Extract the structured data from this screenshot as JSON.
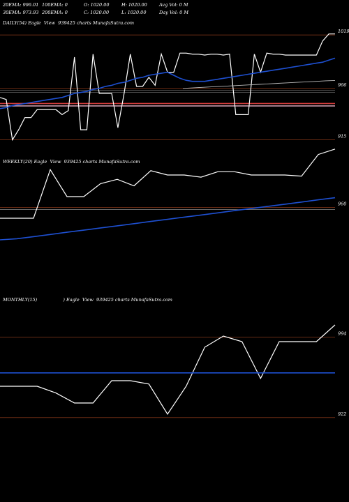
{
  "header": {
    "row1": [
      "20EMA: 996.01",
      "100EMA: 0",
      "O: 1020.00",
      "H: 1020.00",
      "Avg Vol: 0  M"
    ],
    "row2": [
      "30EMA: 973.93",
      "200EMA: 0",
      "C: 1020.00",
      "L: 1020.00",
      "Day Vol: 0  M"
    ]
  },
  "colors": {
    "background": "#000000",
    "price": "#ffffff",
    "ema": "#1e50d2",
    "level_line": "#8b3a1a",
    "red_band": "#d23c3c",
    "pink_band": "#e8b4c8"
  },
  "chart_data": [
    {
      "type": "line",
      "title": "DAILY(54) Eagle  View  939425 charts MunafaSutra.com",
      "ylim": [
        905,
        1026
      ],
      "yticks": [
        1019,
        966,
        915
      ],
      "series": [
        {
          "role": "price",
          "values": [
            957,
            955,
            915,
            925,
            937,
            937,
            945,
            945,
            945,
            945,
            940,
            944,
            997,
            925,
            925,
            1000,
            961,
            961,
            961,
            927,
            961,
            1000,
            968,
            968,
            977,
            969,
            1000,
            982,
            982,
            1001,
            1001,
            1000,
            1000,
            999,
            1000,
            1000,
            999,
            1000,
            940,
            940,
            940,
            1000,
            982,
            1001,
            1000,
            1000,
            999,
            999,
            999,
            999,
            999,
            999,
            1013,
            1020,
            1020
          ]
        },
        {
          "role": "ema",
          "values": [
            946,
            947,
            949,
            950,
            951,
            952,
            953,
            954,
            955,
            956,
            957,
            959,
            961,
            962,
            963,
            965,
            966,
            968,
            969,
            971,
            972,
            974,
            976,
            977,
            979,
            980,
            981,
            982,
            979,
            976,
            974,
            973,
            973,
            973,
            974,
            975,
            976,
            977,
            978,
            979,
            980,
            981,
            982,
            983,
            984,
            985,
            986,
            987,
            988,
            989,
            990,
            991,
            992,
            994,
            996
          ]
        },
        {
          "role": "ema_slow",
          "values": [
            966,
            966.5,
            967,
            967.5,
            968,
            968.5,
            969,
            969.5,
            970,
            970.5,
            971,
            971.5,
            972,
            972.5,
            973,
            973.5,
            973.9
          ]
        }
      ],
      "levels": [
        1019,
        966,
        915
      ],
      "bands": [
        951,
        950
      ]
    },
    {
      "type": "line",
      "title": "WEEKLY(20) Eagle  View  939425 charts MunafaSutra.com",
      "ylim": [
        910,
        1010
      ],
      "yticks": [
        960
      ],
      "series": [
        {
          "role": "price",
          "values": [
            950,
            950,
            950,
            995,
            970,
            970,
            982,
            986,
            980,
            994,
            990,
            990,
            988,
            993,
            993,
            990,
            990,
            990,
            989,
            1009,
            1014
          ]
        },
        {
          "role": "ema",
          "values": [
            930,
            931,
            933,
            935,
            937,
            939,
            941,
            943,
            945,
            947,
            949,
            951,
            953,
            955,
            957,
            959,
            961,
            963,
            965,
            967,
            969
          ]
        }
      ],
      "levels": [
        960
      ]
    },
    {
      "type": "line",
      "title": "MONTHLY(15)                  ) Eagle  View  939425 charts MunafaSutra.com",
      "ylim": [
        910,
        1010
      ],
      "yticks": [
        994,
        922
      ],
      "series": [
        {
          "role": "price",
          "values": [
            950,
            950,
            950,
            944,
            935,
            935,
            955,
            955,
            952,
            925,
            950,
            985,
            995,
            990,
            957,
            990,
            990,
            990,
            1005
          ]
        },
        {
          "role": "ema",
          "values": [
            962,
            962,
            962,
            962,
            962,
            962,
            962,
            962,
            962,
            962,
            962,
            962,
            962,
            962,
            962,
            962,
            962,
            962,
            962
          ]
        }
      ],
      "levels": [
        994,
        922
      ]
    }
  ]
}
